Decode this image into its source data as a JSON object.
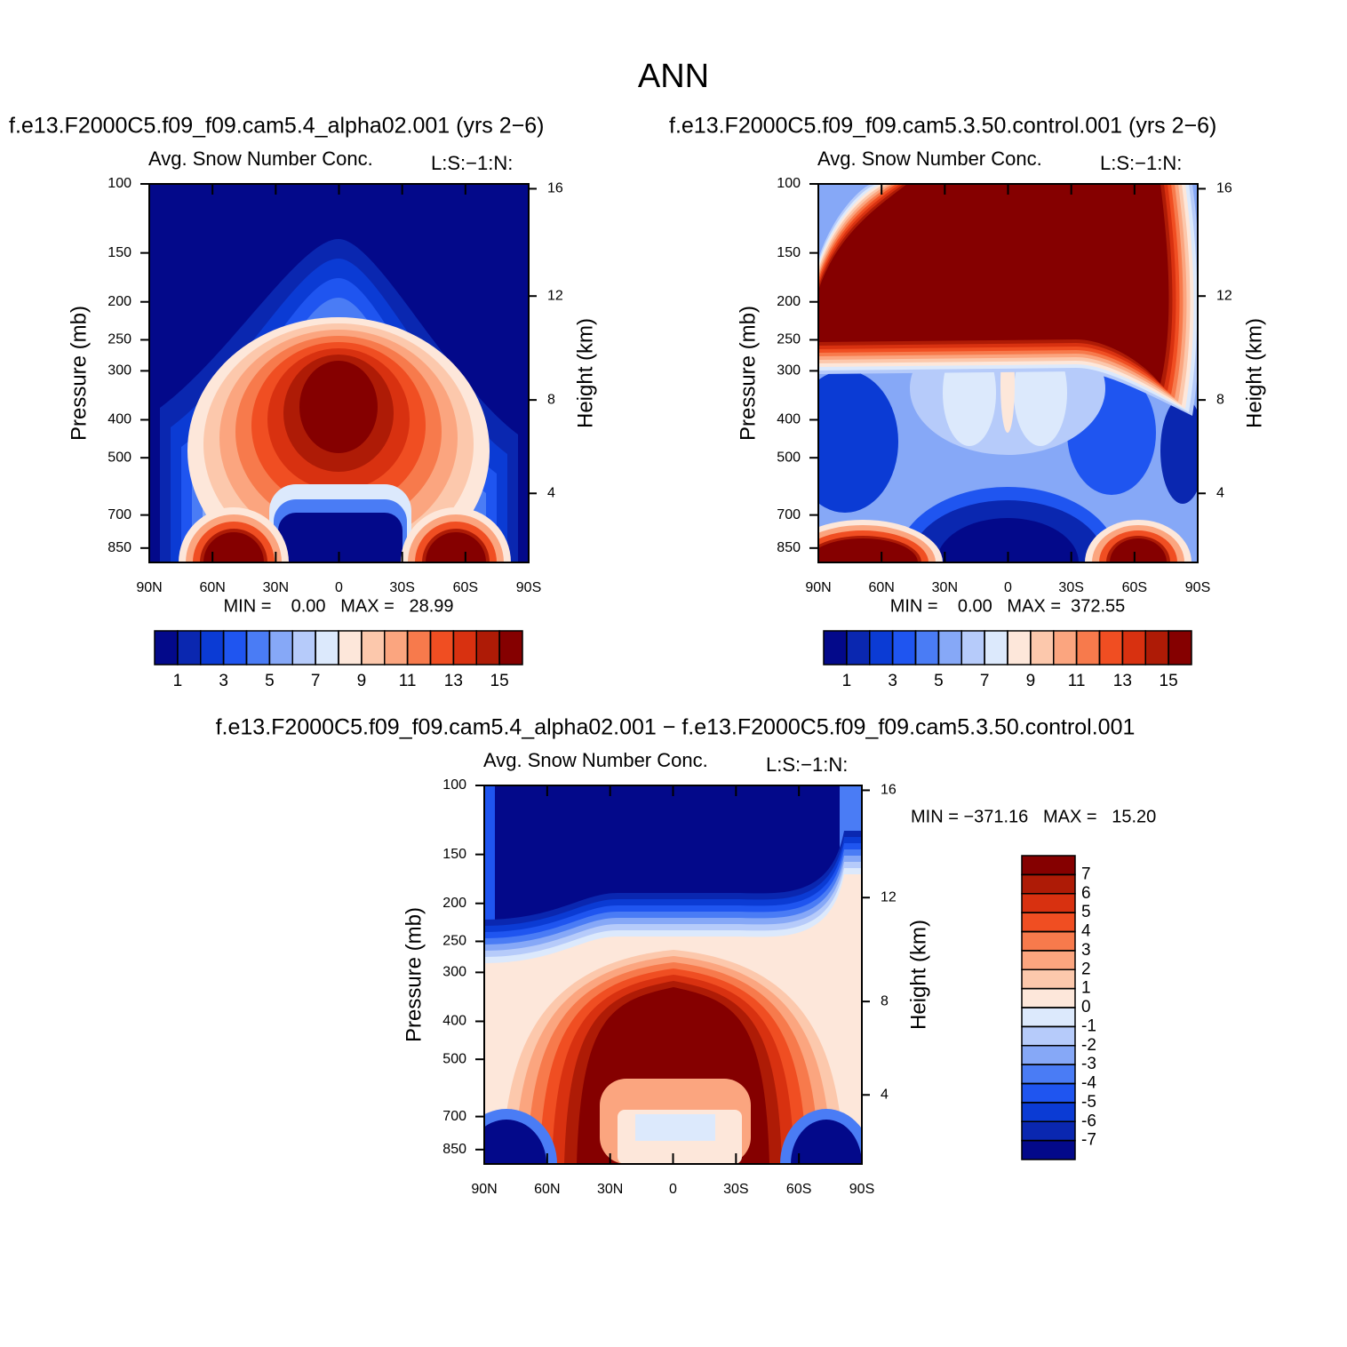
{
  "title": "ANN",
  "chart_data": [
    {
      "type": "contour",
      "case": "f.e13.F2000C5.f09_f09.cam5.4_alpha02.001 (yrs 2−6)",
      "title": "Avg. Snow Number Conc.",
      "subtitle": "L:S:−1:N:",
      "ylabel": "Pressure (mb)",
      "y2label": "Height (km)",
      "xlim": [
        90,
        -90
      ],
      "xticks": [
        {
          "value": 90,
          "label": "90N"
        },
        {
          "value": 60,
          "label": "60N"
        },
        {
          "value": 30,
          "label": "30N"
        },
        0,
        {
          "value": -30,
          "label": "30S"
        },
        {
          "value": -60,
          "label": "60S"
        },
        {
          "value": -90,
          "label": "90S"
        }
      ],
      "ylim": [
        925,
        100
      ],
      "log_y": true,
      "yticks": [
        100,
        150,
        200,
        250,
        300,
        400,
        500,
        700,
        850
      ],
      "y2ticks": [
        4,
        8,
        12,
        16
      ],
      "stats": "MIN =    0.00   MAX =   28.99",
      "colorbar": {
        "orientation": "horizontal",
        "colors": [
          "#03098a",
          "#0a27b0",
          "#0b3bd4",
          "#1f55f0",
          "#4a7cf5",
          "#86a8f7",
          "#b6cbfa",
          "#dce9fc",
          "#fde7da",
          "#fcc8ac",
          "#fba57f",
          "#f77a4c",
          "#f04e22",
          "#d83110",
          "#ae1b06",
          "#850000"
        ],
        "levels": [
          1,
          2,
          3,
          4,
          5,
          6,
          7,
          8,
          9,
          10,
          11,
          12,
          13,
          14,
          15
        ],
        "ticks": [
          1,
          3,
          5,
          7,
          9,
          11,
          13,
          15
        ]
      }
    },
    {
      "type": "contour",
      "case": "f.e13.F2000C5.f09_f09.cam5.3.50.control.001 (yrs 2−6)",
      "title": "Avg. Snow Number Conc.",
      "subtitle": "L:S:−1:N:",
      "ylabel": "Pressure (mb)",
      "y2label": "Height (km)",
      "xlim": [
        90,
        -90
      ],
      "xticks": [
        {
          "value": 90,
          "label": "90N"
        },
        {
          "value": 60,
          "label": "60N"
        },
        {
          "value": 30,
          "label": "30N"
        },
        0,
        {
          "value": -30,
          "label": "30S"
        },
        {
          "value": -60,
          "label": "60S"
        },
        {
          "value": -90,
          "label": "90S"
        }
      ],
      "ylim": [
        925,
        100
      ],
      "log_y": true,
      "yticks": [
        100,
        150,
        200,
        250,
        300,
        400,
        500,
        700,
        850
      ],
      "y2ticks": [
        4,
        8,
        12,
        16
      ],
      "stats": "MIN =    0.00   MAX =  372.55",
      "colorbar": {
        "orientation": "horizontal",
        "colors": [
          "#03098a",
          "#0a27b0",
          "#0b3bd4",
          "#1f55f0",
          "#4a7cf5",
          "#86a8f7",
          "#b6cbfa",
          "#dce9fc",
          "#fde7da",
          "#fcc8ac",
          "#fba57f",
          "#f77a4c",
          "#f04e22",
          "#d83110",
          "#ae1b06",
          "#850000"
        ],
        "levels": [
          1,
          2,
          3,
          4,
          5,
          6,
          7,
          8,
          9,
          10,
          11,
          12,
          13,
          14,
          15
        ],
        "ticks": [
          1,
          3,
          5,
          7,
          9,
          11,
          13,
          15
        ]
      }
    },
    {
      "type": "contour",
      "case": "f.e13.F2000C5.f09_f09.cam5.4_alpha02.001 − f.e13.F2000C5.f09_f09.cam5.3.50.control.001",
      "title": "Avg. Snow Number Conc.",
      "subtitle": "L:S:−1:N:",
      "ylabel": "Pressure (mb)",
      "y2label": "Height (km)",
      "xlim": [
        90,
        -90
      ],
      "xticks": [
        {
          "value": 90,
          "label": "90N"
        },
        {
          "value": 60,
          "label": "60N"
        },
        {
          "value": 30,
          "label": "30N"
        },
        0,
        {
          "value": -30,
          "label": "30S"
        },
        {
          "value": -60,
          "label": "60S"
        },
        {
          "value": -90,
          "label": "90S"
        }
      ],
      "ylim": [
        925,
        100
      ],
      "log_y": true,
      "yticks": [
        100,
        150,
        200,
        250,
        300,
        400,
        500,
        700,
        850
      ],
      "y2ticks": [
        4,
        8,
        12,
        16
      ],
      "stats": "MIN = −371.16   MAX =   15.20",
      "colorbar": {
        "orientation": "vertical",
        "colors": [
          "#03098a",
          "#0a27b0",
          "#0b3bd4",
          "#1f55f0",
          "#4a7cf5",
          "#86a8f7",
          "#b6cbfa",
          "#dce9fc",
          "#fde7da",
          "#fcc8ac",
          "#fba57f",
          "#f77a4c",
          "#f04e22",
          "#d83110",
          "#ae1b06",
          "#850000"
        ],
        "levels": [
          -7,
          -6,
          -5,
          -4,
          -3,
          -2,
          -1,
          0,
          1,
          2,
          3,
          4,
          5,
          6,
          7
        ],
        "ticks": [
          -7,
          -6,
          -5,
          -4,
          -3,
          -2,
          -1,
          0,
          1,
          2,
          3,
          4,
          5,
          6,
          7
        ]
      }
    }
  ]
}
